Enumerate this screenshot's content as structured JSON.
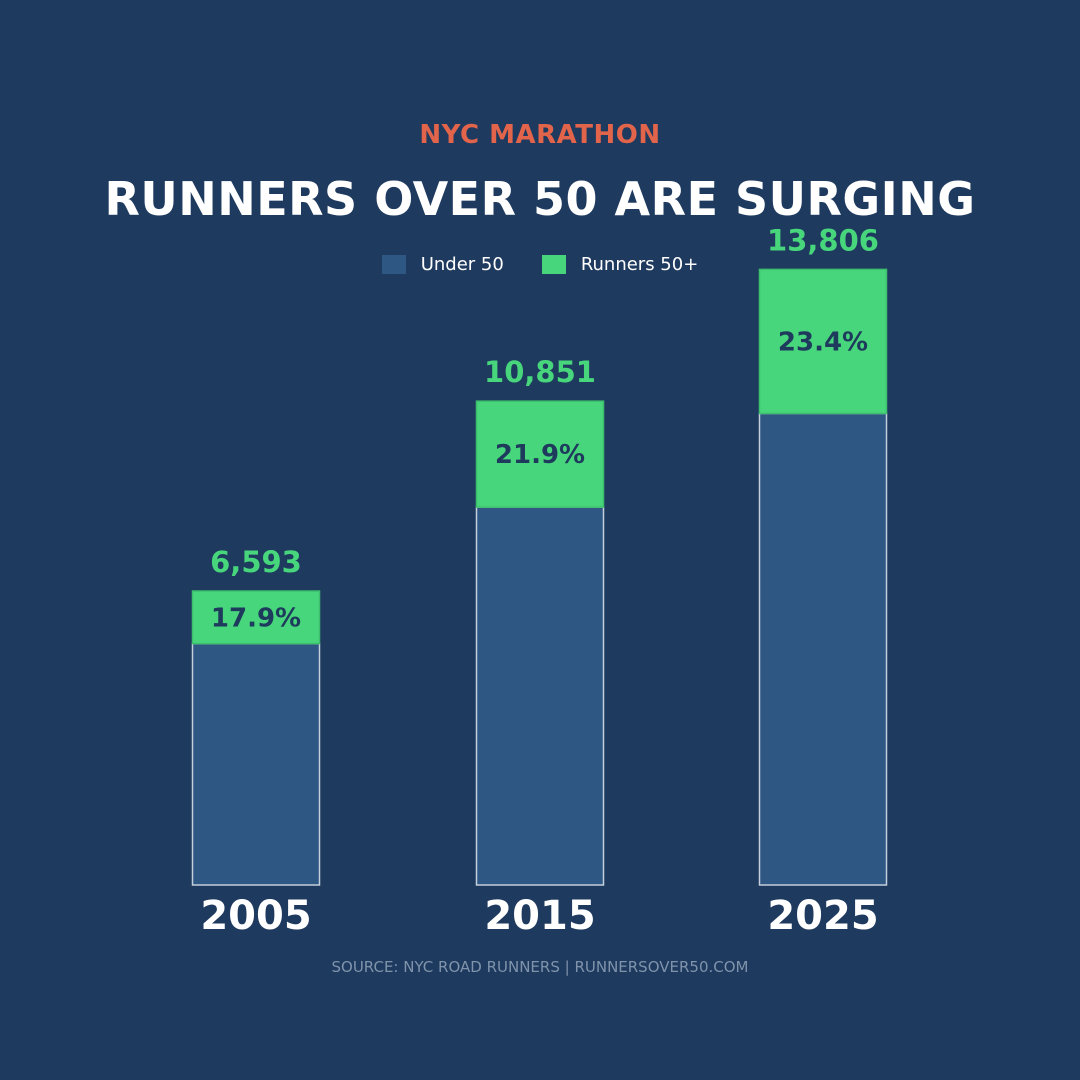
{
  "kicker": "NYC MARATHON",
  "title": "RUNNERS OVER 50 ARE SURGING",
  "source": "SOURCE: NYC ROAD RUNNERS  |  RUNNERSOVER50.COM",
  "colors": {
    "background": "#1f3a5f",
    "under50": "#2e5783",
    "over50": "#47d67c",
    "accent": "#e2644a",
    "bar_outline": "#c3cfdc",
    "percent_text": "#1e3a5c"
  },
  "chart_data": {
    "type": "bar",
    "stacked": true,
    "categories": [
      "2005",
      "2015",
      "2025"
    ],
    "totals_labels": [
      "6,593",
      "10,851",
      "13,806"
    ],
    "percent_labels": [
      "17.9%",
      "21.9%",
      "23.4%"
    ],
    "series": [
      {
        "name": "Under 50",
        "values": [
          5413,
          8475,
          10575
        ]
      },
      {
        "name": "Runners 50+",
        "values": [
          1180,
          2376,
          3231
        ]
      }
    ],
    "legend": {
      "position": "top-center",
      "labels": [
        "Under 50",
        "Runners 50+"
      ]
    },
    "ylim": [
      0,
      15800
    ],
    "grid": false
  }
}
